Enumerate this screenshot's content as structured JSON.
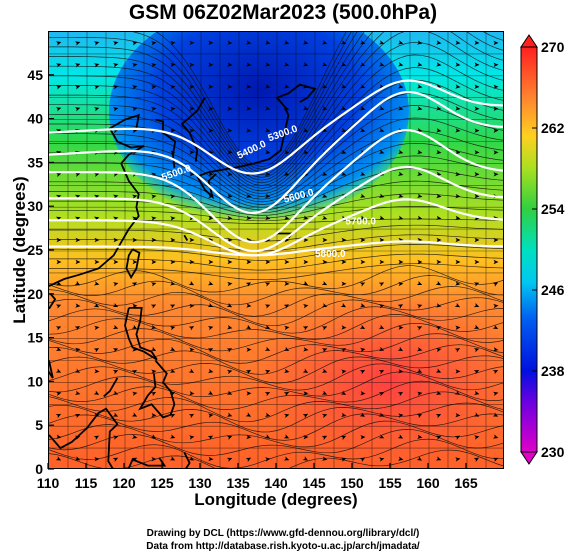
{
  "title": "GSM 06Z02Mar2023 (500.0hPa)",
  "credits": {
    "line1": "Drawing by DCL (https://www.gfd-dennou.org/library/dcl/)",
    "line2": "Data from http://database.rish.kyoto-u.ac.jp/arch/jmadata/"
  },
  "map": {
    "xlabel": "Longitude (degrees)",
    "ylabel": "Latitude  (degrees)",
    "x_range": [
      110,
      170
    ],
    "y_range": [
      0,
      50
    ],
    "x_ticks": [
      "110",
      "115",
      "120",
      "125",
      "130",
      "135",
      "140",
      "145",
      "150",
      "155",
      "160",
      "165"
    ],
    "y_ticks": [
      "0",
      "5",
      "10",
      "15",
      "20",
      "25",
      "30",
      "35",
      "40",
      "45"
    ],
    "contour_labels": [
      "5300.0",
      "5400.0",
      "5500.0",
      "5600.0",
      "5700.0",
      "5800.0"
    ],
    "colorbar": {
      "ticks": [
        "230",
        "238",
        "246",
        "254",
        "262",
        "270"
      ],
      "min": 230,
      "max": 270
    },
    "colors": {
      "cold": "#0000c8",
      "cyan": "#00e0ff",
      "green": "#30d040",
      "yellow": "#ffd020",
      "orange": "#ff6a20",
      "red": "#ff3030",
      "magenta": "#e000e0"
    }
  }
}
